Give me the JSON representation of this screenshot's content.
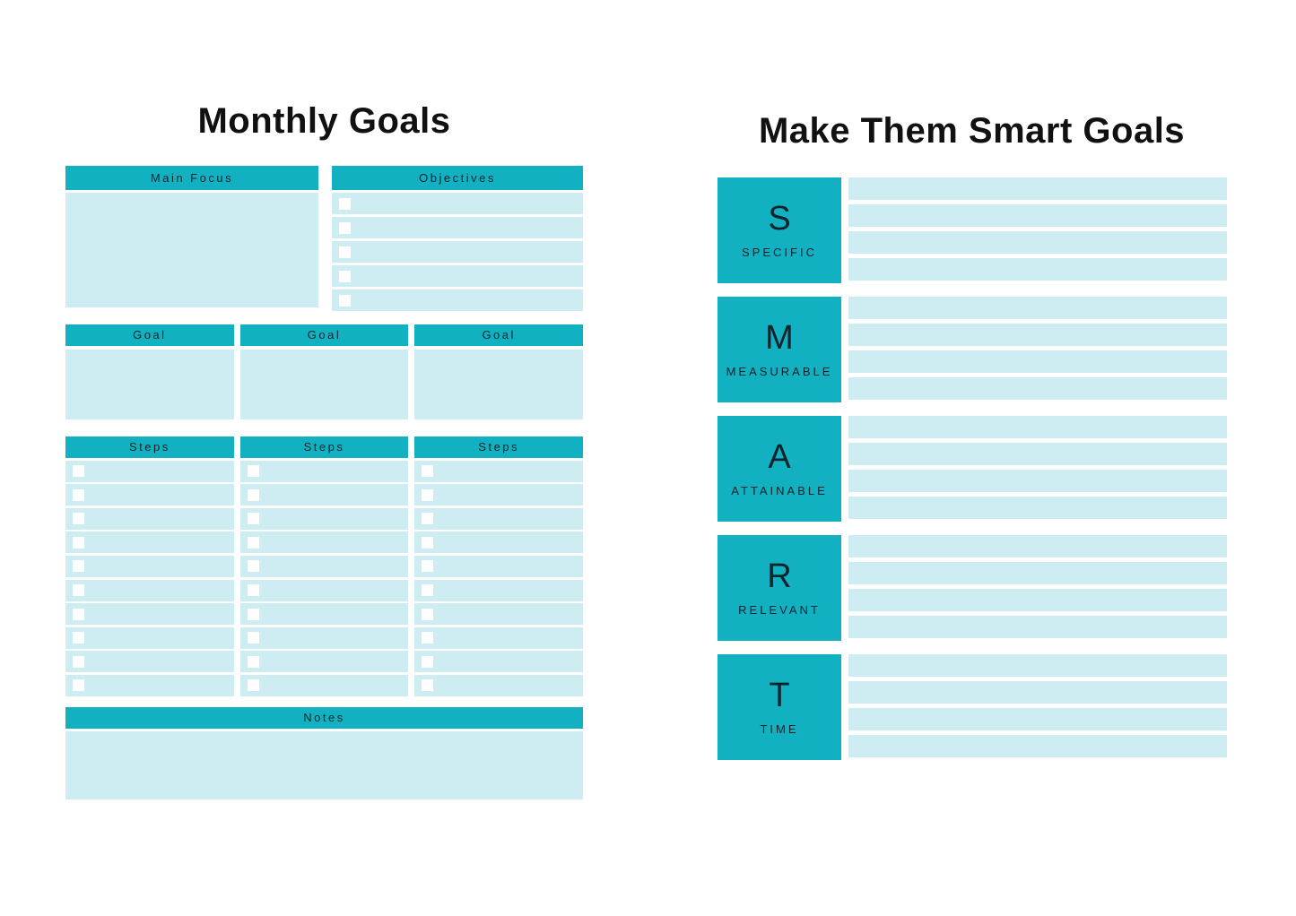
{
  "colors": {
    "teal": "#12b1c1",
    "light_teal": "#ceedf2",
    "ink": "#13222a"
  },
  "left_page": {
    "title": "Monthly Goals",
    "main_focus": {
      "label": "Main Focus"
    },
    "objectives": {
      "label": "Objectives",
      "row_count": 5
    },
    "goal_columns": [
      {
        "label": "Goal"
      },
      {
        "label": "Goal"
      },
      {
        "label": "Goal"
      }
    ],
    "steps_columns": [
      {
        "label": "Steps",
        "row_count": 10
      },
      {
        "label": "Steps",
        "row_count": 10
      },
      {
        "label": "Steps",
        "row_count": 10
      }
    ],
    "notes": {
      "label": "Notes"
    }
  },
  "right_page": {
    "title": "Make Them Smart Goals",
    "sections": [
      {
        "letter": "S",
        "label": "SPECIFIC",
        "line_count": 4
      },
      {
        "letter": "M",
        "label": "MEASURABLE",
        "line_count": 4
      },
      {
        "letter": "A",
        "label": "ATTAINABLE",
        "line_count": 4
      },
      {
        "letter": "R",
        "label": "RELEVANT",
        "line_count": 4
      },
      {
        "letter": "T",
        "label": "TIME",
        "line_count": 4
      }
    ]
  }
}
